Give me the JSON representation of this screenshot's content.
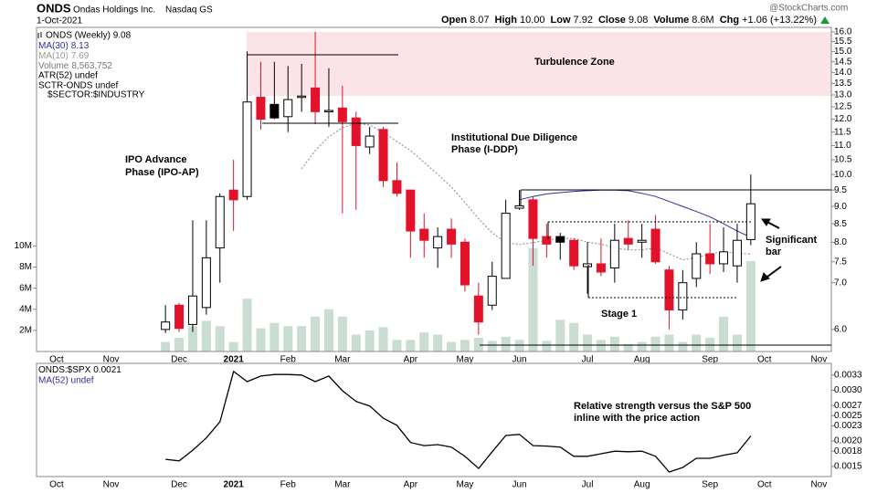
{
  "header": {
    "symbol": "ONDS",
    "company": "Ondas Holdings Inc.",
    "exchange": "Nasdaq GS",
    "date": "1-Oct-2021",
    "quote": [
      {
        "label": "Open",
        "value": "8.07"
      },
      {
        "label": "High",
        "value": "10.00"
      },
      {
        "label": "Low",
        "value": "7.92"
      },
      {
        "label": "Close",
        "value": "9.08"
      },
      {
        "label": "Volume",
        "value": "8.6M"
      },
      {
        "label": "Chg",
        "value": "+1.06 (+13.22%)"
      }
    ],
    "source": "@StockCharts.com"
  },
  "chart_data": [
    {
      "type": "candlestick",
      "legend_top": "ONDS (Weekly) 9.08",
      "extra_legend": [
        "ATR(52) undef",
        "SCTR-ONDS undef",
        "$SECTOR:$INDUSTRY"
      ],
      "categories": [
        "Oct",
        null,
        null,
        null,
        "Nov",
        null,
        null,
        null,
        null,
        "Dec",
        null,
        null,
        null,
        "2021",
        null,
        null,
        null,
        "Feb",
        null,
        null,
        null,
        "Mar",
        null,
        null,
        null,
        null,
        "Apr",
        null,
        null,
        null,
        "May",
        null,
        null,
        null,
        "Jun",
        null,
        null,
        null,
        null,
        "Jul",
        null,
        null,
        null,
        "Aug",
        null,
        null,
        null,
        null,
        "Sep",
        null,
        null,
        null,
        "Oct",
        null,
        null,
        null,
        "Nov"
      ],
      "open": [
        null,
        null,
        null,
        null,
        null,
        null,
        null,
        null,
        6.0,
        6.5,
        6.1,
        6.45,
        7.85,
        9.5,
        9.3,
        12.9,
        12.6,
        12.1,
        12.9,
        13.3,
        12.3,
        12.45,
        12.05,
        10.95,
        11.6,
        9.8,
        9.5,
        8.35,
        7.85,
        8.35,
        8.0,
        6.7,
        6.5,
        7.1,
        8.95,
        9.2,
        8.15,
        8.15,
        8.05,
        7.38,
        7.45,
        7.35,
        8.1,
        8.0,
        8.35,
        7.3,
        6.4,
        7.1,
        7.7,
        7.45,
        7.4,
        8.07,
        null,
        null,
        null,
        null,
        null
      ],
      "high": [
        null,
        null,
        null,
        null,
        null,
        null,
        null,
        null,
        6.5,
        6.55,
        8.6,
        8.6,
        9.4,
        10.5,
        15.0,
        14.5,
        14.5,
        14.3,
        14.4,
        16.0,
        14.2,
        13.4,
        12.3,
        11.7,
        11.7,
        10.4,
        9.5,
        8.8,
        8.4,
        8.65,
        8.1,
        7.0,
        7.5,
        9.2,
        9.5,
        9.3,
        8.5,
        8.25,
        8.1,
        8.0,
        8.1,
        8.5,
        8.6,
        8.5,
        8.75,
        7.4,
        7.3,
        8.0,
        8.5,
        8.4,
        8.5,
        10.0,
        null,
        null,
        null,
        null,
        null
      ],
      "low": [
        null,
        null,
        null,
        null,
        null,
        null,
        null,
        null,
        5.93,
        5.95,
        5.95,
        6.3,
        7.0,
        8.3,
        9.2,
        11.6,
        12.0,
        11.5,
        12.3,
        11.8,
        11.7,
        8.8,
        8.9,
        10.7,
        9.6,
        9.3,
        7.6,
        7.6,
        7.35,
        7.6,
        6.8,
        5.9,
        6.4,
        7.1,
        8.9,
        7.4,
        7.6,
        7.55,
        7.3,
        6.75,
        7.15,
        7.0,
        7.8,
        7.6,
        7.45,
        6.0,
        6.2,
        6.9,
        7.2,
        7.25,
        7.0,
        7.92,
        null,
        null,
        null,
        null,
        null
      ],
      "close": [
        null,
        null,
        null,
        null,
        null,
        null,
        null,
        null,
        6.15,
        6.02,
        6.7,
        7.6,
        9.3,
        9.2,
        12.7,
        12.0,
        12.05,
        12.8,
        12.95,
        12.3,
        12.35,
        11.9,
        11.0,
        11.35,
        9.8,
        9.4,
        8.3,
        8.05,
        8.15,
        7.95,
        6.95,
        6.15,
        7.15,
        8.8,
        9.02,
        8.1,
        7.95,
        8.0,
        7.4,
        7.45,
        7.25,
        8.05,
        7.95,
        8.05,
        7.5,
        6.4,
        7.0,
        7.7,
        7.45,
        7.75,
        8.05,
        9.08,
        null,
        null,
        null,
        null,
        null
      ],
      "up_color": "#000000",
      "down_color": "#e3122b",
      "yscale": "log",
      "ylim": [
        5.58,
        16.24
      ],
      "yticks": [
        {
          "value": 6,
          "label": "6.0"
        },
        {
          "value": 7,
          "label": "7.0"
        },
        7.5,
        {
          "value": 8,
          "label": "8.0"
        },
        8.5,
        {
          "value": 9,
          "label": "9.0"
        },
        9.5,
        {
          "value": 10,
          "label": "10.0"
        },
        10.5,
        {
          "value": 11,
          "label": "11.0"
        },
        11.5,
        {
          "value": 12,
          "label": "12.0"
        },
        12.5,
        {
          "value": 13,
          "label": "13.0"
        },
        13.5,
        {
          "value": 14,
          "label": "14.0"
        },
        14.5,
        {
          "value": 15,
          "label": "15.0"
        },
        15.5,
        {
          "value": 16,
          "label": "16.0"
        }
      ],
      "grid": false,
      "volume": {
        "name": "Volume",
        "value_label": "8,563,752",
        "color": "#c9ddd2",
        "ylim": [
          0,
          30700000
        ],
        "yticks": [
          {
            "value": 2000000,
            "label": "2M"
          },
          {
            "value": 4000000,
            "label": "4M"
          },
          {
            "value": 6000000,
            "label": "6M"
          },
          {
            "value": 8000000,
            "label": "8M"
          },
          {
            "value": 10000000,
            "label": "10M"
          }
        ],
        "values": [
          null,
          null,
          null,
          null,
          null,
          null,
          null,
          null,
          900000,
          1300000,
          2400000,
          2900000,
          2400000,
          900000,
          5000000,
          2200000,
          2700000,
          2400000,
          2400000,
          3300000,
          4000000,
          3300000,
          1600000,
          2000000,
          2300000,
          1100000,
          1100000,
          1800000,
          1600000,
          900000,
          1100000,
          1300000,
          1000000,
          1400000,
          1100000,
          9800000,
          1000000,
          3000000,
          2700000,
          1600000,
          1100000,
          1400000,
          700000,
          900000,
          1400000,
          1600000,
          900000,
          1600000,
          1300000,
          3300000,
          1600000,
          8563752,
          null,
          null,
          null,
          null,
          null
        ]
      },
      "series": [
        {
          "name": "MA(30)",
          "value_label": "8.13",
          "color": "#2e2e9e",
          "dashed": false,
          "values": [
            null,
            null,
            null,
            null,
            null,
            null,
            null,
            null,
            null,
            null,
            null,
            null,
            null,
            null,
            null,
            null,
            null,
            null,
            null,
            null,
            null,
            null,
            null,
            null,
            null,
            null,
            null,
            null,
            null,
            null,
            null,
            null,
            null,
            null,
            9.2,
            9.3,
            9.38,
            9.42,
            9.46,
            9.48,
            9.5,
            9.5,
            9.48,
            9.4,
            9.3,
            9.15,
            9.0,
            8.85,
            8.7,
            8.5,
            8.3,
            8.13,
            null,
            null,
            null,
            null,
            null
          ]
        },
        {
          "name": "MA(10)",
          "value_label": "7.69",
          "color": "#999999",
          "dashed": true,
          "values": [
            null,
            null,
            null,
            null,
            null,
            null,
            null,
            null,
            null,
            null,
            null,
            null,
            null,
            null,
            null,
            null,
            null,
            null,
            10.19,
            10.82,
            11.32,
            11.67,
            11.84,
            11.77,
            11.49,
            11.15,
            10.82,
            10.41,
            10.0,
            9.6,
            9.12,
            8.64,
            8.25,
            7.99,
            7.94,
            7.99,
            8.05,
            8.1,
            8.1,
            8.0,
            7.95,
            7.85,
            7.8,
            7.8,
            7.85,
            7.7,
            7.55,
            7.6,
            7.7,
            7.75,
            7.72,
            7.69,
            null,
            null,
            null,
            null,
            null
          ]
        }
      ],
      "annotations": [
        "Turbulence Zone",
        "Institutional Due Diligence",
        "Phase (I-DDP)",
        "IPO Advance",
        "Phase (IPO-AP)",
        "Stage 1",
        "Significant",
        "bar"
      ]
    },
    {
      "type": "line",
      "extra_legend": [
        "MA(52) undef"
      ],
      "categories": [
        "Oct",
        null,
        null,
        null,
        "Nov",
        null,
        null,
        null,
        null,
        "Dec",
        null,
        null,
        null,
        "2021",
        null,
        null,
        null,
        "Feb",
        null,
        null,
        null,
        "Mar",
        null,
        null,
        null,
        null,
        "Apr",
        null,
        null,
        null,
        "May",
        null,
        null,
        null,
        "Jun",
        null,
        null,
        null,
        null,
        "Jul",
        null,
        null,
        null,
        "Aug",
        null,
        null,
        null,
        null,
        "Sep",
        null,
        null,
        null,
        "Oct",
        null,
        null,
        null,
        "Nov"
      ],
      "ylim": [
        0.0013,
        0.00353
      ],
      "yticks": [
        0.0015,
        0.0018,
        {
          "value": 0.002,
          "label": "0.0020"
        },
        0.0023,
        0.0025,
        0.0027,
        {
          "value": 0.003,
          "label": "0.0030"
        },
        0.0033
      ],
      "series": [
        {
          "name": "ONDS:$SPX",
          "value_label": "0.0021",
          "color": "#000000",
          "values": [
            null,
            null,
            null,
            null,
            null,
            null,
            null,
            null,
            0.00164,
            0.00161,
            0.00182,
            0.00206,
            0.00238,
            0.00337,
            0.00317,
            0.00328,
            0.00331,
            0.00331,
            0.0033,
            0.00317,
            0.00328,
            0.00299,
            0.00278,
            0.00269,
            0.00245,
            0.00231,
            0.00197,
            0.00191,
            0.00193,
            0.00188,
            0.0017,
            0.00146,
            0.00179,
            0.00211,
            0.00213,
            0.00191,
            0.0019,
            0.00188,
            0.0017,
            0.0017,
            0.00175,
            0.0018,
            0.00179,
            0.0018,
            0.0017,
            0.00139,
            0.00148,
            0.00166,
            0.00166,
            0.00172,
            0.00177,
            0.0021,
            null,
            null,
            null,
            null,
            null
          ]
        }
      ],
      "annotations": [
        "Relative strength versus the S&P 500",
        "inline with the price action"
      ]
    }
  ]
}
